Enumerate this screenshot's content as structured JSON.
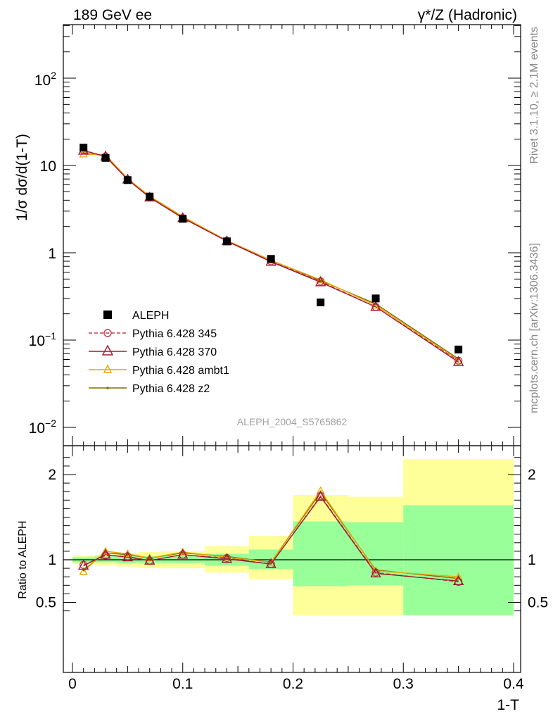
{
  "header": {
    "left_title": "189 GeV ee",
    "right_title": "γ*/Z (Hadronic)"
  },
  "side_labels": {
    "top": "Rivet 3.1.10, ≥ 2.1M events",
    "bottom": "mcplots.cern.ch [arXiv:1306.3436]"
  },
  "watermark": "ALEPH_2004_S5765862",
  "colors": {
    "data": "#000000",
    "p345": "#c04050",
    "p370": "#a01830",
    "ambt1": "#e8a800",
    "z2": "#807000",
    "band_inner": "#99ff99",
    "band_outer": "#ffff99"
  },
  "chart_data": [
    {
      "type": "line",
      "xlabel": "1-T",
      "ylabel": "1/σ  dσ/d(1-T)",
      "y_scale": "log",
      "xlim": [
        0,
        0.4
      ],
      "ylim": [
        0.005,
        400
      ],
      "y_tick_labels": [
        "10^-2",
        "10^-1",
        "1",
        "10",
        "10^2"
      ],
      "legend_position": "middle-left",
      "x": [
        0.01,
        0.03,
        0.05,
        0.07,
        0.1,
        0.14,
        0.18,
        0.225,
        0.275,
        0.35
      ],
      "series": [
        {
          "name": "ALEPH",
          "marker": "square",
          "values": [
            16.0,
            12.2,
            6.8,
            4.4,
            2.45,
            1.35,
            0.85,
            0.27,
            0.3,
            0.078
          ]
        },
        {
          "name": "Pythia 6.428 345",
          "marker": "circle",
          "line": "dashed",
          "values": [
            15.0,
            12.6,
            6.9,
            4.35,
            2.5,
            1.37,
            0.8,
            0.47,
            0.24,
            0.058
          ]
        },
        {
          "name": "Pythia 6.428 370",
          "marker": "triangle",
          "line": "solid",
          "values": [
            14.8,
            12.7,
            6.9,
            4.3,
            2.5,
            1.36,
            0.79,
            0.46,
            0.24,
            0.056
          ]
        },
        {
          "name": "Pythia 6.428 ambt1",
          "marker": "triangle",
          "line": "solid",
          "values": [
            13.5,
            13.2,
            7.1,
            4.45,
            2.6,
            1.38,
            0.82,
            0.49,
            0.25,
            0.059
          ]
        },
        {
          "name": "Pythia 6.428 z2",
          "marker": "dot",
          "line": "solid",
          "values": [
            13.8,
            13.0,
            7.0,
            4.4,
            2.55,
            1.38,
            0.82,
            0.48,
            0.26,
            0.061
          ]
        }
      ]
    },
    {
      "type": "line",
      "xlabel": "1-T",
      "ylabel": "Ratio to ALEPH",
      "xlim": [
        0,
        0.4
      ],
      "ylim": [
        0.35,
        2.25
      ],
      "x_tick_labels": [
        "0",
        "0.1",
        "0.2",
        "0.3",
        "0.4"
      ],
      "y_tick_labels": [
        "0.5",
        "1",
        "2"
      ],
      "x": [
        0.01,
        0.03,
        0.05,
        0.07,
        0.1,
        0.14,
        0.18,
        0.225,
        0.275,
        0.35
      ],
      "bins": [
        [
          0.0,
          0.02
        ],
        [
          0.02,
          0.04
        ],
        [
          0.04,
          0.06
        ],
        [
          0.06,
          0.08
        ],
        [
          0.08,
          0.12
        ],
        [
          0.12,
          0.16
        ],
        [
          0.16,
          0.2
        ],
        [
          0.2,
          0.25
        ],
        [
          0.25,
          0.3
        ],
        [
          0.3,
          0.4
        ]
      ],
      "band_inner": [
        [
          0.97,
          1.03
        ],
        [
          0.97,
          1.04
        ],
        [
          0.96,
          1.05
        ],
        [
          0.96,
          1.04
        ],
        [
          0.96,
          1.05
        ],
        [
          0.93,
          1.07
        ],
        [
          0.89,
          1.12
        ],
        [
          0.69,
          1.45
        ],
        [
          0.7,
          1.44
        ],
        [
          0.35,
          1.64
        ]
      ],
      "band_outer": [
        [
          0.95,
          1.05
        ],
        [
          0.94,
          1.06
        ],
        [
          0.92,
          1.07
        ],
        [
          0.9,
          1.09
        ],
        [
          0.9,
          1.1
        ],
        [
          0.85,
          1.16
        ],
        [
          0.77,
          1.28
        ],
        [
          0.35,
          1.76
        ],
        [
          0.35,
          1.74
        ],
        [
          0.35,
          2.18
        ]
      ],
      "series": [
        {
          "name": "Pythia 6.428 345",
          "values": [
            0.94,
            1.05,
            1.04,
            0.99,
            1.06,
            1.02,
            0.95,
            1.75,
            0.85,
            0.74
          ]
        },
        {
          "name": "Pythia 6.428 370",
          "values": [
            0.93,
            1.06,
            1.03,
            0.99,
            1.06,
            1.01,
            0.95,
            1.74,
            0.84,
            0.75
          ]
        },
        {
          "name": "Pythia 6.428 ambt1",
          "values": [
            0.86,
            1.1,
            1.07,
            1.02,
            1.09,
            1.03,
            0.97,
            1.81,
            0.87,
            0.8
          ]
        },
        {
          "name": "Pythia 6.428 z2",
          "values": [
            0.88,
            1.08,
            1.06,
            1.02,
            1.08,
            1.04,
            0.97,
            1.79,
            0.88,
            0.78
          ]
        }
      ]
    }
  ]
}
